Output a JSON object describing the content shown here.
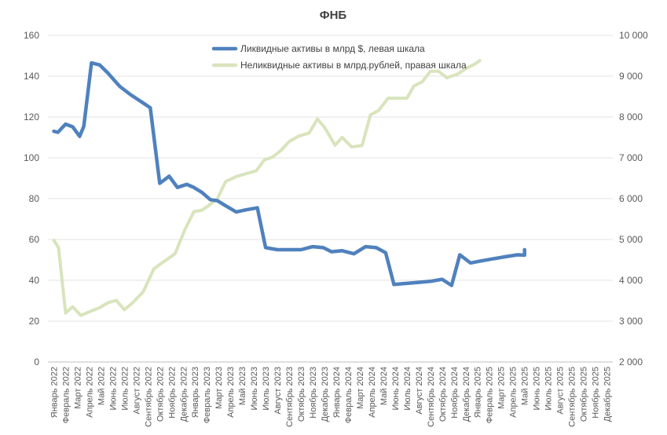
{
  "chart_data": {
    "type": "line",
    "title": "ФНБ",
    "legend_position": "top",
    "grid": true,
    "y_left": {
      "min": 0,
      "max": 160,
      "step": 20,
      "ticks": [
        "0",
        "20",
        "40",
        "60",
        "80",
        "100",
        "120",
        "140",
        "160"
      ]
    },
    "y_right": {
      "min": 2000,
      "max": 10000,
      "step": 1000,
      "ticks": [
        "2 000",
        "3 000",
        "4 000",
        "5 000",
        "6 000",
        "7 000",
        "8 000",
        "9 000",
        "10 000"
      ]
    },
    "x_labels": [
      "Январь 2022",
      "Февраль 2022",
      "Март 2022",
      "Апрель 2022",
      "Май 2022",
      "Июнь 2022",
      "Июль 2022",
      "Август 2022",
      "Сентябрь 2022",
      "Октябрь 2022",
      "Ноябрь 2022",
      "Декабрь 2022",
      "Январь 2023",
      "Февраль 2023",
      "Март 2023",
      "Апрель 2023",
      "Май 2023",
      "Июнь 2023",
      "Июль 2023",
      "Август 2023",
      "Сентябрь 2023",
      "Октябрь 2023",
      "Ноябрь 2023",
      "Декабрь 2023",
      "Январь 2024",
      "Февраль 2024",
      "Март 2024",
      "Апрель 2024",
      "Май 2024",
      "Июнь 2024",
      "Июль 2024",
      "Август 2024",
      "Сентябрь 2024",
      "Октябрь 2024",
      "Ноябрь 2024",
      "Декабрь 2024",
      "Январь 2025",
      "Февраль 2025",
      "Март 2025",
      "Апрель 2025",
      "Май 2025",
      "Июнь 2025",
      "Июль 2025",
      "Август 2025",
      "Сентябрь 2025",
      "Октябрь 2025",
      "Ноябрь 2025",
      "Декабрь 2025"
    ],
    "series": [
      {
        "name": "Ликвидные активы в млрд $, левая шкала",
        "axis": "left",
        "color": "#4f81bd",
        "points": [
          [
            1.0,
            113
          ],
          [
            1.35,
            112.5
          ],
          [
            2.0,
            116.5
          ],
          [
            2.6,
            115.2
          ],
          [
            3.2,
            110.5
          ],
          [
            3.55,
            115.5
          ],
          [
            4.2,
            146.5
          ],
          [
            4.9,
            145.5
          ],
          [
            5.6,
            141.5
          ],
          [
            6.6,
            135
          ],
          [
            7.5,
            131
          ],
          [
            8.3,
            128
          ],
          [
            9.2,
            124.5
          ],
          [
            10.0,
            87.5
          ],
          [
            10.8,
            91
          ],
          [
            11.5,
            85.5
          ],
          [
            12.3,
            87
          ],
          [
            12.9,
            85.5
          ],
          [
            13.6,
            83
          ],
          [
            14.3,
            79.5
          ],
          [
            14.9,
            79
          ],
          [
            15.6,
            76.5
          ],
          [
            16.5,
            73.5
          ],
          [
            17.3,
            74.5
          ],
          [
            18.3,
            75.5
          ],
          [
            19.0,
            56
          ],
          [
            20.0,
            55
          ],
          [
            21.0,
            55
          ],
          [
            22.0,
            55
          ],
          [
            23.0,
            56.5
          ],
          [
            23.9,
            56
          ],
          [
            24.6,
            54
          ],
          [
            25.5,
            54.5
          ],
          [
            26.5,
            53
          ],
          [
            27.5,
            56.5
          ],
          [
            28.4,
            56
          ],
          [
            29.2,
            53.5
          ],
          [
            29.9,
            38
          ],
          [
            31.0,
            38.5
          ],
          [
            32.0,
            39
          ],
          [
            33.0,
            39.5
          ],
          [
            34.0,
            40.5
          ],
          [
            34.8,
            37.5
          ],
          [
            35.5,
            52.5
          ],
          [
            36.4,
            48.5
          ],
          [
            37.3,
            49.5
          ],
          [
            38.3,
            50.5
          ],
          [
            39.3,
            51.5
          ],
          [
            40.4,
            52.5
          ],
          [
            41.0,
            52.3
          ],
          [
            41.0,
            55
          ]
        ]
      },
      {
        "name": "Неликвидные активы в млрд.рублей, правая шкала",
        "axis": "right",
        "color": "#d8e4bc",
        "points": [
          [
            1.0,
            4980
          ],
          [
            1.4,
            4800
          ],
          [
            2.0,
            3200
          ],
          [
            2.6,
            3350
          ],
          [
            3.3,
            3140
          ],
          [
            4.2,
            3250
          ],
          [
            4.9,
            3330
          ],
          [
            5.6,
            3450
          ],
          [
            6.3,
            3510
          ],
          [
            7.0,
            3280
          ],
          [
            7.7,
            3450
          ],
          [
            8.6,
            3720
          ],
          [
            9.5,
            4280
          ],
          [
            10.4,
            4470
          ],
          [
            11.3,
            4650
          ],
          [
            12.1,
            5220
          ],
          [
            12.9,
            5680
          ],
          [
            13.6,
            5720
          ],
          [
            14.2,
            5840
          ],
          [
            14.9,
            6000
          ],
          [
            15.6,
            6420
          ],
          [
            16.5,
            6540
          ],
          [
            17.3,
            6610
          ],
          [
            18.2,
            6680
          ],
          [
            18.9,
            6950
          ],
          [
            19.6,
            7020
          ],
          [
            20.3,
            7180
          ],
          [
            21.0,
            7400
          ],
          [
            21.8,
            7530
          ],
          [
            22.7,
            7610
          ],
          [
            23.4,
            7950
          ],
          [
            24.0,
            7750
          ],
          [
            24.9,
            7310
          ],
          [
            25.5,
            7500
          ],
          [
            26.3,
            7270
          ],
          [
            27.2,
            7300
          ],
          [
            27.9,
            8050
          ],
          [
            28.6,
            8160
          ],
          [
            29.4,
            8460
          ],
          [
            30.3,
            8460
          ],
          [
            31.0,
            8460
          ],
          [
            31.6,
            8760
          ],
          [
            32.3,
            8860
          ],
          [
            33.0,
            9120
          ],
          [
            33.7,
            9120
          ],
          [
            34.4,
            8960
          ],
          [
            35.3,
            9050
          ],
          [
            36.1,
            9200
          ],
          [
            36.8,
            9300
          ],
          [
            37.2,
            9380
          ]
        ]
      }
    ]
  }
}
